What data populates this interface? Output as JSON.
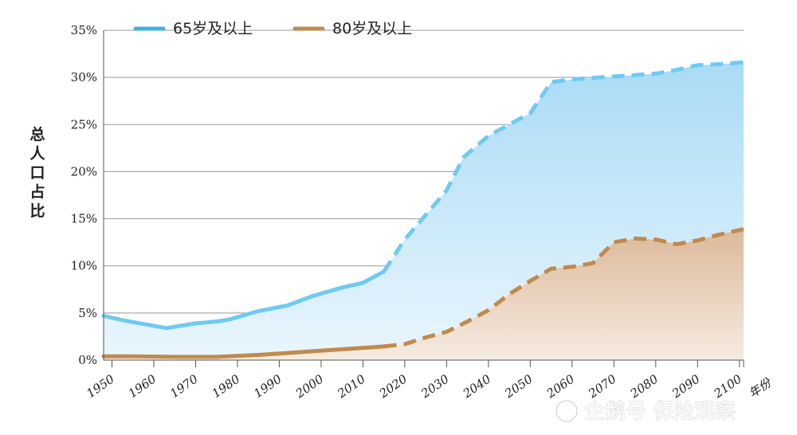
{
  "chart_data": {
    "type": "area",
    "title": "",
    "ylabel": "总人口占比",
    "xlabel": "年份",
    "ylim": [
      0,
      35
    ],
    "xlim": [
      1948,
      2101
    ],
    "yticks": [
      "0%",
      "5%",
      "10%",
      "15%",
      "20%",
      "25%",
      "30%",
      "35%"
    ],
    "xticks": [
      "1950",
      "1960",
      "1970",
      "1980",
      "1990",
      "2000",
      "2010",
      "2020",
      "2030",
      "2040",
      "2050",
      "2060",
      "2070",
      "2080",
      "2090",
      "2100"
    ],
    "grid": "horizontal",
    "legend_position": "top-left",
    "series": [
      {
        "name": "65岁及以上",
        "color": "#3db0e3",
        "fill": "#bfe3f6",
        "points": [
          [
            1948,
            4.7
          ],
          [
            1953,
            4.2
          ],
          [
            1958,
            3.8
          ],
          [
            1963,
            3.4
          ],
          [
            1970,
            3.9
          ],
          [
            1975,
            4.1
          ],
          [
            1978,
            4.3
          ],
          [
            1985,
            5.2
          ],
          [
            1992,
            5.8
          ],
          [
            1998,
            6.8
          ],
          [
            2005,
            7.7
          ],
          [
            2010,
            8.2
          ],
          [
            2015,
            9.4
          ],
          [
            2020,
            12.8
          ],
          [
            2025,
            15.4
          ],
          [
            2030,
            18.0
          ],
          [
            2034,
            21.5
          ],
          [
            2040,
            23.8
          ],
          [
            2045,
            25.0
          ],
          [
            2050,
            26.2
          ],
          [
            2055,
            29.5
          ],
          [
            2060,
            29.8
          ],
          [
            2070,
            30.1
          ],
          [
            2080,
            30.4
          ],
          [
            2085,
            30.8
          ],
          [
            2090,
            31.3
          ],
          [
            2095,
            31.4
          ],
          [
            2101,
            31.6
          ]
        ],
        "solid_until": 2015
      },
      {
        "name": "80岁及以上",
        "color": "#c08a4e",
        "fill": "#e8d4be",
        "points": [
          [
            1948,
            0.4
          ],
          [
            1955,
            0.4
          ],
          [
            1965,
            0.35
          ],
          [
            1975,
            0.35
          ],
          [
            1985,
            0.55
          ],
          [
            1995,
            0.85
          ],
          [
            2005,
            1.15
          ],
          [
            2015,
            1.45
          ],
          [
            2020,
            1.7
          ],
          [
            2025,
            2.4
          ],
          [
            2030,
            3.0
          ],
          [
            2035,
            4.1
          ],
          [
            2040,
            5.3
          ],
          [
            2045,
            7.0
          ],
          [
            2050,
            8.4
          ],
          [
            2055,
            9.7
          ],
          [
            2060,
            9.9
          ],
          [
            2065,
            10.3
          ],
          [
            2070,
            12.5
          ],
          [
            2075,
            12.9
          ],
          [
            2080,
            12.8
          ],
          [
            2085,
            12.3
          ],
          [
            2090,
            12.7
          ],
          [
            2095,
            13.3
          ],
          [
            2101,
            13.9
          ]
        ],
        "solid_until": 2015
      }
    ]
  },
  "watermark": "企鹅号 保险观察"
}
